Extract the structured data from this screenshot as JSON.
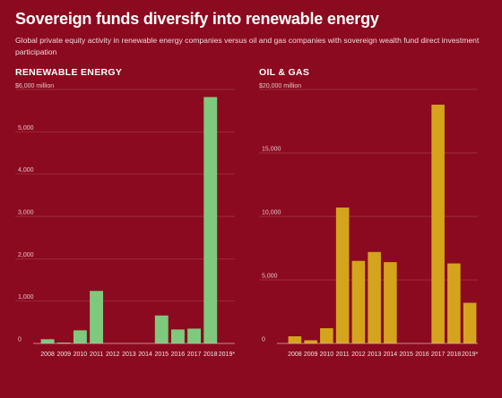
{
  "title": "Sovereign funds diversify into renewable energy",
  "subtitle": "Global private equity activity in renewable energy companies versus oil and gas companies with sovereign wealth fund direct investment participation",
  "colors": {
    "background": "#8b0a1f",
    "renewable": "#7fc97f",
    "oil_gas": "#d4a51c"
  },
  "chart_data": [
    {
      "type": "bar",
      "title": "RENEWABLE ENERGY",
      "unit_label": "$6,000 million",
      "categories": [
        "2008",
        "2009",
        "2010",
        "2011",
        "2012",
        "2013",
        "2014",
        "2015",
        "2016",
        "2017",
        "2018",
        "2019*"
      ],
      "values": [
        100,
        20,
        310,
        1240,
        0,
        0,
        0,
        660,
        330,
        350,
        5820,
        0
      ],
      "ylim": [
        0,
        6000
      ],
      "yticks": [
        0,
        1000,
        2000,
        3000,
        4000,
        5000
      ],
      "ytick_labels": [
        "0",
        "1,000",
        "2,000",
        "3,000",
        "4,000",
        "5,000"
      ],
      "xlabel": "",
      "ylabel": "",
      "grid": true
    },
    {
      "type": "bar",
      "title": "OIL & GAS",
      "unit_label": "$20,000 million",
      "categories": [
        "2008",
        "2009",
        "2010",
        "2011",
        "2012",
        "2013",
        "2014",
        "2015",
        "2016",
        "2017",
        "2018",
        "2019*"
      ],
      "values": [
        560,
        250,
        1200,
        10700,
        6500,
        7200,
        6400,
        0,
        0,
        18800,
        6300,
        3200
      ],
      "ylim": [
        0,
        20000
      ],
      "yticks": [
        0,
        5000,
        10000,
        15000
      ],
      "ytick_labels": [
        "0",
        "5,000",
        "10,000",
        "15,000"
      ],
      "xlabel": "",
      "ylabel": "",
      "grid": true
    }
  ]
}
